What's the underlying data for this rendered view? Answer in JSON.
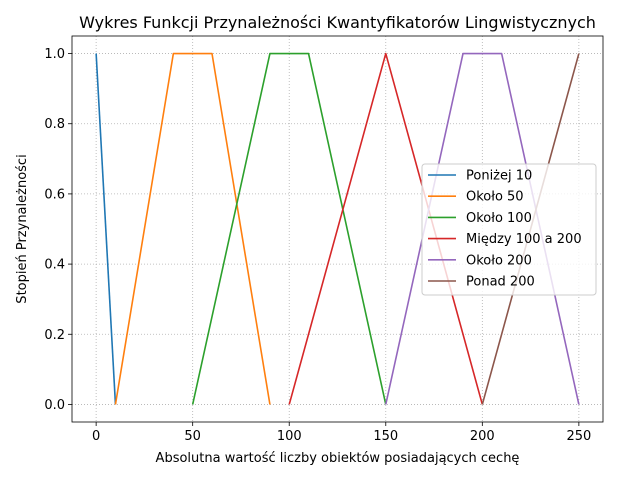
{
  "chart_data": {
    "type": "line",
    "title": "Wykres Funkcji Przynależności Kwantyfikatorów Lingwistycznych",
    "xlabel": "Absolutna wartość liczby obiektów posiadających cechę",
    "ylabel": "Stopień Przynależności",
    "xlim": [
      -12.5,
      262.5
    ],
    "ylim": [
      -0.05,
      1.05
    ],
    "xticks": [
      0,
      50,
      100,
      150,
      200,
      250
    ],
    "yticks": [
      0.0,
      0.2,
      0.4,
      0.6,
      0.8,
      1.0
    ],
    "xtick_labels": [
      "0",
      "50",
      "100",
      "150",
      "200",
      "250"
    ],
    "ytick_labels": [
      "0.0",
      "0.2",
      "0.4",
      "0.6",
      "0.8",
      "1.0"
    ],
    "grid": true,
    "legend_position": "center-right",
    "series": [
      {
        "name": "Poniżej 10",
        "color": "#1f77b4",
        "x": [
          0,
          10
        ],
        "y": [
          1,
          0
        ]
      },
      {
        "name": "Około 50",
        "color": "#ff7f0e",
        "x": [
          10,
          40,
          60,
          90
        ],
        "y": [
          0,
          1,
          1,
          0
        ]
      },
      {
        "name": "Około 100",
        "color": "#2ca02c",
        "x": [
          50,
          90,
          110,
          150
        ],
        "y": [
          0,
          1,
          1,
          0
        ]
      },
      {
        "name": "Między 100 a 200",
        "color": "#d62728",
        "x": [
          100,
          150,
          200
        ],
        "y": [
          0,
          1,
          0
        ]
      },
      {
        "name": "Około 200",
        "color": "#9467bd",
        "x": [
          150,
          190,
          210,
          250
        ],
        "y": [
          0,
          1,
          1,
          0
        ]
      },
      {
        "name": "Ponad 200",
        "color": "#8c564b",
        "x": [
          200,
          250
        ],
        "y": [
          0,
          1
        ]
      }
    ]
  }
}
